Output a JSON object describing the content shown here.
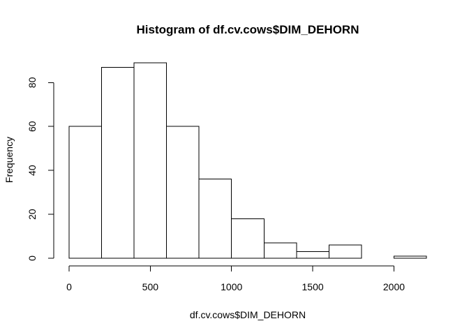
{
  "chart_data": {
    "type": "bar",
    "title": "Histogram of df.cv.cows$DIM_DEHORN",
    "xlabel": "df.cv.cows$DIM_DEHORN",
    "ylabel": "Frequency",
    "bin_edges": [
      0,
      200,
      400,
      600,
      800,
      1000,
      1200,
      1400,
      1600,
      1800,
      2000,
      2200
    ],
    "values": [
      60,
      87,
      89,
      60,
      36,
      18,
      7,
      3,
      6,
      0,
      1
    ],
    "xlim": [
      0,
      2200
    ],
    "ylim": [
      0,
      90
    ],
    "x_ticks": [
      0,
      500,
      1000,
      1500,
      2000
    ],
    "x_tick_labels": [
      "0",
      "500",
      "1000",
      "1500",
      "2000"
    ],
    "y_ticks": [
      0,
      20,
      40,
      60,
      80
    ],
    "y_tick_labels": [
      "0",
      "20",
      "40",
      "60",
      "80"
    ],
    "bar_fill": "#ffffff",
    "bar_stroke": "#000000",
    "grid": false,
    "legend": "none"
  }
}
